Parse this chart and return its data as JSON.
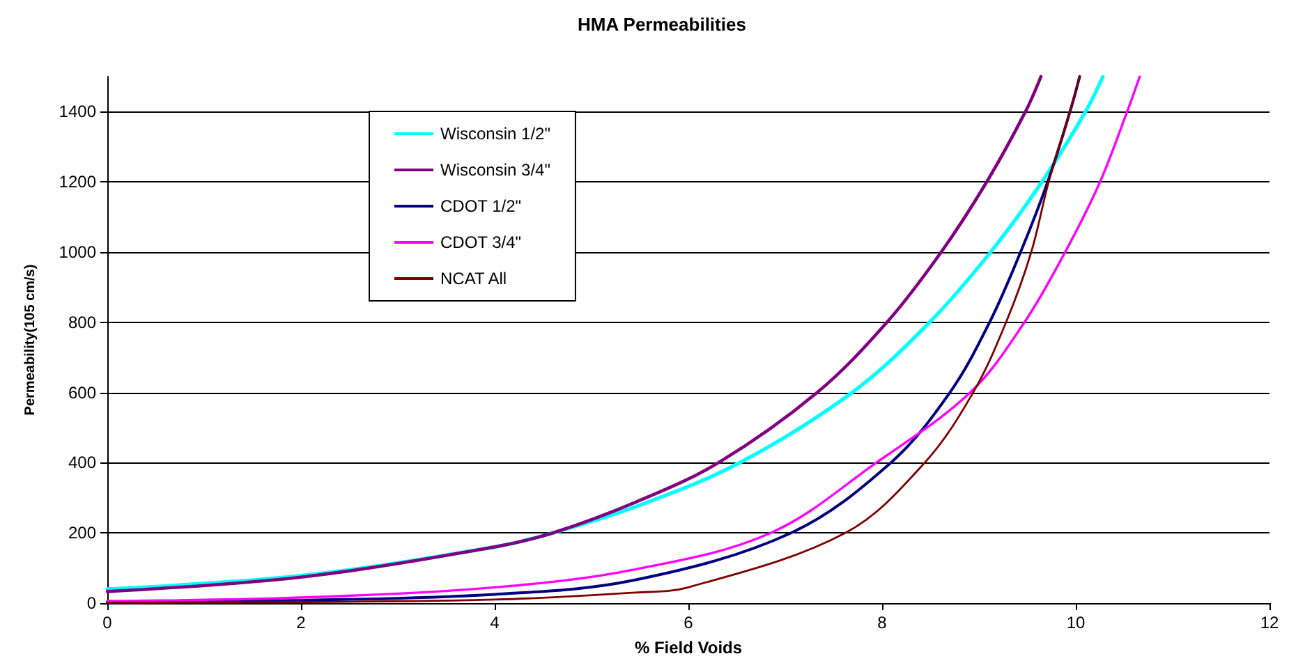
{
  "chart_data": {
    "type": "line",
    "title": "HMA Permeabilities",
    "xlabel": "% Field Voids",
    "ylabel": "Permeability(105 cm/s)",
    "xlim": [
      0,
      12
    ],
    "xticks": [
      0,
      2,
      4,
      6,
      8,
      10,
      12
    ],
    "ylim": [
      0,
      1500
    ],
    "yticks": [
      0,
      200,
      400,
      600,
      800,
      1000,
      1200,
      1400
    ],
    "grid": "y",
    "legend": "top left",
    "marker": "none",
    "line_style": "solid",
    "series": [
      {
        "name": "Wisconsin 1/2\"",
        "color": "#00ffff",
        "x": [
          0,
          2,
          4,
          4.6,
          5.45,
          6.53,
          7.69,
          8.49,
          9.12,
          9.65,
          10.1,
          10.28
        ],
        "values": [
          40,
          78,
          160,
          200,
          274,
          400,
          600,
          800,
          1000,
          1200,
          1400,
          1500
        ]
      },
      {
        "name": "Wisconsin 3/4\"",
        "color": "#800080",
        "x": [
          0,
          2,
          4,
          4.6,
          5.45,
          6.31,
          7.33,
          8.05,
          8.61,
          9.08,
          9.48,
          9.64
        ],
        "values": [
          33,
          74,
          160,
          200,
          287,
          400,
          600,
          800,
          1000,
          1200,
          1400,
          1500
        ]
      },
      {
        "name": "CDOT 1/2\"",
        "color": "#000080",
        "x": [
          0,
          2,
          4,
          5.45,
          7.06,
          8.09,
          8.7,
          9.11,
          9.43,
          9.71,
          9.94,
          10.04
        ],
        "values": [
          3,
          8,
          25,
          66,
          200,
          400,
          600,
          800,
          1000,
          1200,
          1400,
          1500
        ]
      },
      {
        "name": "CDOT 3/4\"",
        "color": "#ff00ff",
        "x": [
          0,
          2,
          4,
          5.45,
          6.85,
          7.94,
          8.91,
          9.47,
          9.89,
          10.25,
          10.53,
          10.66
        ],
        "values": [
          6,
          16,
          45,
          96,
          200,
          400,
          600,
          800,
          1000,
          1200,
          1400,
          1500
        ]
      },
      {
        "name": "NCAT All",
        "color": "#800000",
        "x": [
          0,
          2,
          4,
          5.45,
          6,
          7.62,
          8.44,
          8.94,
          9.28,
          9.54,
          9.72,
          9.94,
          10.04
        ],
        "values": [
          1,
          3,
          10,
          30,
          45,
          200,
          400,
          600,
          800,
          1000,
          1200,
          1400,
          1500
        ]
      }
    ]
  }
}
